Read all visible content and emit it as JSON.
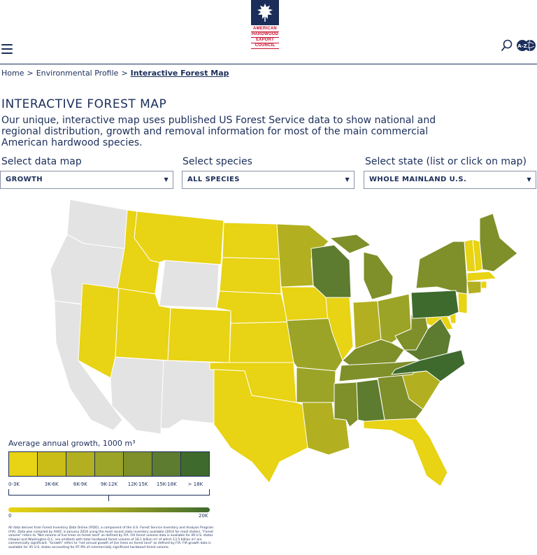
{
  "header": {
    "logo_lines": [
      "AMERICAN",
      "HARDWOOD",
      "EXPORT",
      "COUNCIL"
    ],
    "menu_icon": "hamburger-icon",
    "search_icon": "search-icon",
    "az_icon": "az-globe-icon",
    "az_label": "A-Z"
  },
  "breadcrumb": {
    "items": [
      "Home",
      "Environmental Profile",
      "Interactive Forest Map"
    ],
    "separator": ">"
  },
  "page": {
    "title": "INTERACTIVE FOREST MAP",
    "intro": "Our unique, interactive map uses published US Forest Service data to show national and regional distribution, growth and removal information for most of the main commercial American hardwood species."
  },
  "selectors": {
    "data_map": {
      "label": "Select data map",
      "value": "GROWTH"
    },
    "species": {
      "label": "Select species",
      "value": "ALL SPECIES"
    },
    "state": {
      "label": "Select state (list or click on map)",
      "value": "WHOLE MAINLAND U.S."
    }
  },
  "legend": {
    "title": "Average annual growth, 1000 m³",
    "ranges": [
      "0-3K",
      "3K-6K",
      "6K-9K",
      "9K-12K",
      "12K-15K",
      "15K-18K",
      "> 18K"
    ],
    "colors": [
      "#e8d314",
      "#cbbd17",
      "#b2b020",
      "#9ca427",
      "#7f8f2a",
      "#5d7c2f",
      "#3e6a2e"
    ],
    "no_data_color": "#e3e3e3",
    "gradient_min": "0",
    "gradient_max": "20K"
  },
  "footnote": "All data derives from Forest Inventory Data Online (FIDO), a component of the U.S. Forest Service Inventory and Analysis Program (FIA). Data was compiled by AHEC in January 2016 using the most recent state inventory available (2014 for most states). \"Forest volume\" refers to \"Net volume of live trees on forest land\" as defined by FIA. FIA forest volume data is available for 49 U.S. states (Hawaii and Washington D.C. are omitted) with total hardwood forest volume of 18.1 billion m³ of which 13.5 billion m³ are commercially significant. \"Growth\" refers to \"net annual growth of live trees on forest land\" as defined by FIA. FIA growth data is available for 45 U.S. states accounting for 97.9% of commercially significant hardwood forest volume."
}
